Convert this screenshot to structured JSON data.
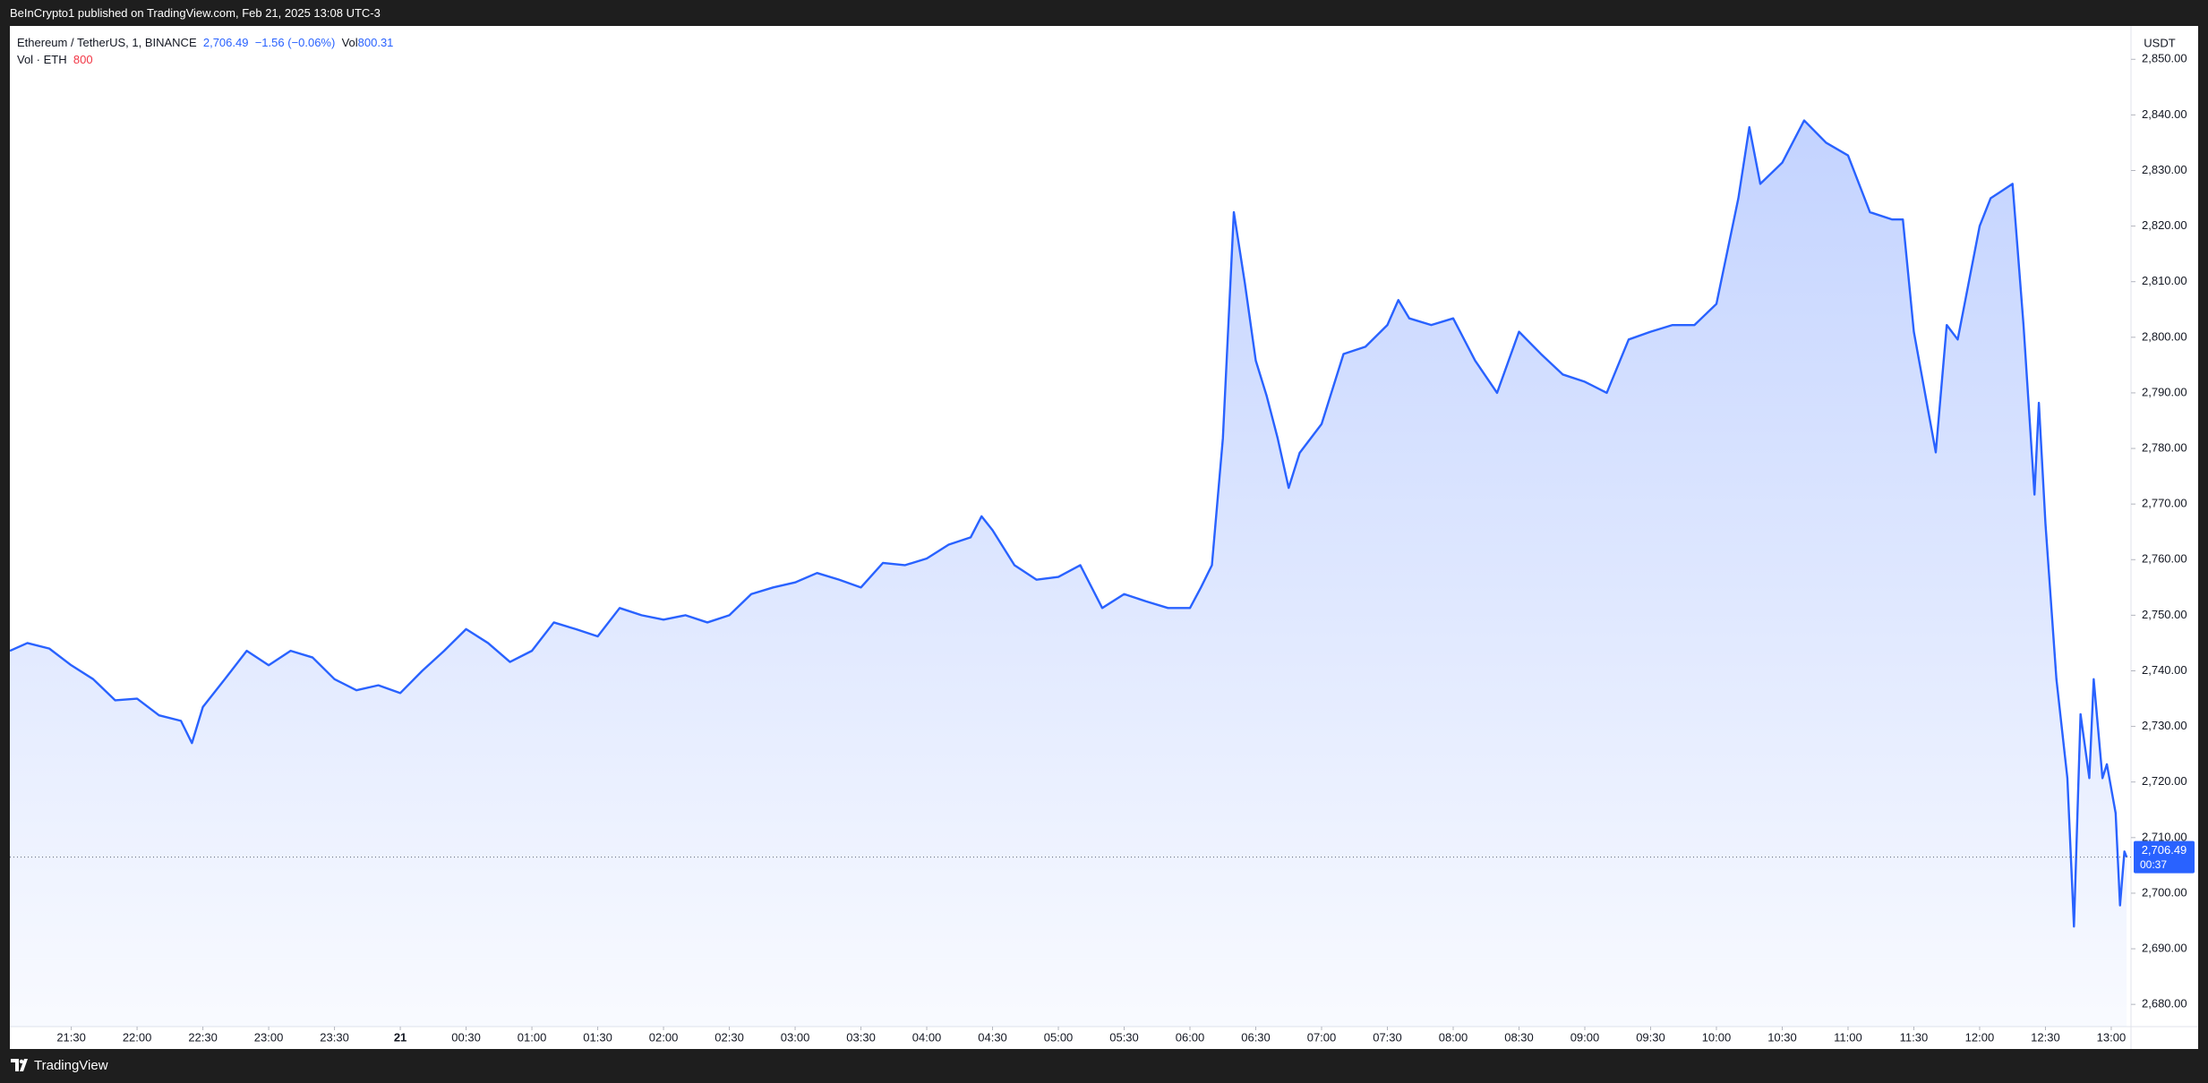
{
  "chart_data": {
    "type": "area",
    "header": "BeInCrypto1 published on TradingView.com, Feb 21, 2025 13:08 UTC-3",
    "symbol": "Ethereum / TetherUS, 1, BINANCE",
    "last_price_text": "2,706.49",
    "change_text": "−1.56 (−0.06%)",
    "volume_label": "Vol",
    "volume_value_text": "800.31",
    "volume_title": "Vol · ETH",
    "volume_short": "800",
    "currency": "USDT",
    "brand": "TradingView",
    "color": "#2962ff",
    "grid": false,
    "x": [
      "21:02",
      "21:10",
      "21:20",
      "21:30",
      "21:40",
      "21:50",
      "22:00",
      "22:10",
      "22:20",
      "22:25",
      "22:30",
      "22:40",
      "22:50",
      "23:00",
      "23:10",
      "23:20",
      "23:30",
      "23:40",
      "23:50",
      "00:00",
      "00:10",
      "00:20",
      "00:30",
      "00:40",
      "00:50",
      "01:00",
      "01:10",
      "01:20",
      "01:30",
      "01:40",
      "01:50",
      "02:00",
      "02:10",
      "02:20",
      "02:30",
      "02:40",
      "02:50",
      "03:00",
      "03:10",
      "03:20",
      "03:30",
      "03:40",
      "03:50",
      "04:00",
      "04:10",
      "04:20",
      "04:25",
      "04:30",
      "04:40",
      "04:50",
      "05:00",
      "05:10",
      "05:20",
      "05:30",
      "05:40",
      "05:50",
      "06:00",
      "06:05",
      "06:10",
      "06:15",
      "06:20",
      "06:25",
      "06:30",
      "06:35",
      "06:40",
      "06:45",
      "06:50",
      "07:00",
      "07:10",
      "07:20",
      "07:30",
      "07:35",
      "07:40",
      "07:50",
      "08:00",
      "08:10",
      "08:20",
      "08:30",
      "08:40",
      "08:50",
      "09:00",
      "09:10",
      "09:20",
      "09:30",
      "09:40",
      "09:50",
      "10:00",
      "10:10",
      "10:15",
      "10:20",
      "10:30",
      "10:40",
      "10:50",
      "11:00",
      "11:10",
      "11:20",
      "11:25",
      "11:30",
      "11:40",
      "11:45",
      "11:50",
      "12:00",
      "12:05",
      "12:10",
      "12:15",
      "12:20",
      "12:25",
      "12:27",
      "12:30",
      "12:35",
      "12:40",
      "12:43",
      "12:46",
      "12:50",
      "12:52",
      "12:56",
      "12:58",
      "13:02",
      "13:04",
      "13:06",
      "13:07"
    ],
    "values": [
      2743.6,
      2745,
      2744,
      2741,
      2738.5,
      2734.7,
      2735,
      2732,
      2731,
      2727,
      2733.5,
      2738.5,
      2743.6,
      2741,
      2743.6,
      2742.4,
      2738.5,
      2736.5,
      2737.4,
      2736,
      2740,
      2743.6,
      2747.5,
      2745,
      2741.6,
      2743.6,
      2748.7,
      2747.5,
      2746.2,
      2751.3,
      2750,
      2749.2,
      2750,
      2748.7,
      2750,
      2753.8,
      2755,
      2755.9,
      2757.6,
      2756.4,
      2755,
      2759.4,
      2759,
      2760.2,
      2762.7,
      2764,
      2767.8,
      2765.3,
      2759,
      2756.4,
      2756.9,
      2759,
      2751.3,
      2753.8,
      2752.5,
      2751.3,
      2751.3,
      2755,
      2759,
      2781.8,
      2822.5,
      2809.8,
      2795.8,
      2789.4,
      2781.8,
      2772.9,
      2779.2,
      2784.4,
      2797,
      2798.3,
      2802.2,
      2806.7,
      2803.4,
      2802.2,
      2803.4,
      2795.8,
      2790,
      2801,
      2797,
      2793.3,
      2792,
      2790,
      2799.6,
      2801,
      2802.2,
      2802.2,
      2806,
      2825,
      2837.8,
      2827.6,
      2831.4,
      2839,
      2835,
      2832.7,
      2822.5,
      2821.2,
      2821.2,
      2801,
      2779.3,
      2802.2,
      2799.6,
      2820,
      2825,
      2826.3,
      2827.6,
      2802.2,
      2771.7,
      2788.2,
      2766.5,
      2738.5,
      2720.7,
      2694,
      2732.2,
      2720.7,
      2738.5,
      2720.7,
      2723.2,
      2714.4,
      2697.8,
      2707.5,
      2706.49
    ],
    "last_price": {
      "value": 2706.49,
      "label": "2,706.49"
    },
    "countdown": "00:37",
    "xlim": [
      "21:02",
      "13:09"
    ],
    "ylim": [
      2676,
      2856
    ],
    "xticks": [
      "21:30",
      "22:00",
      "22:30",
      "23:00",
      "23:30",
      {
        "value": "00:00",
        "label": "21"
      },
      "00:30",
      "01:00",
      "01:30",
      "02:00",
      "02:30",
      "03:00",
      "03:30",
      "04:00",
      "04:30",
      "05:00",
      "05:30",
      "06:00",
      "06:30",
      "07:00",
      "07:30",
      "08:00",
      "08:30",
      "09:00",
      "09:30",
      "10:00",
      "10:30",
      "11:00",
      "11:30",
      "12:00",
      "12:30",
      "13:00"
    ],
    "yticks": [
      {
        "value": 2680,
        "label": "2,680.00"
      },
      {
        "value": 2690,
        "label": "2,690.00"
      },
      {
        "value": 2700,
        "label": "2,700.00"
      },
      {
        "value": 2710,
        "label": "2,710.00"
      },
      {
        "value": 2720,
        "label": "2,720.00"
      },
      {
        "value": 2730,
        "label": "2,730.00"
      },
      {
        "value": 2740,
        "label": "2,740.00"
      },
      {
        "value": 2750,
        "label": "2,750.00"
      },
      {
        "value": 2760,
        "label": "2,760.00"
      },
      {
        "value": 2770,
        "label": "2,770.00"
      },
      {
        "value": 2780,
        "label": "2,780.00"
      },
      {
        "value": 2790,
        "label": "2,790.00"
      },
      {
        "value": 2800,
        "label": "2,800.00"
      },
      {
        "value": 2810,
        "label": "2,810.00"
      },
      {
        "value": 2820,
        "label": "2,820.00"
      },
      {
        "value": 2830,
        "label": "2,830.00"
      },
      {
        "value": 2840,
        "label": "2,840.00"
      },
      {
        "value": 2850,
        "label": "2,850.00"
      }
    ]
  }
}
